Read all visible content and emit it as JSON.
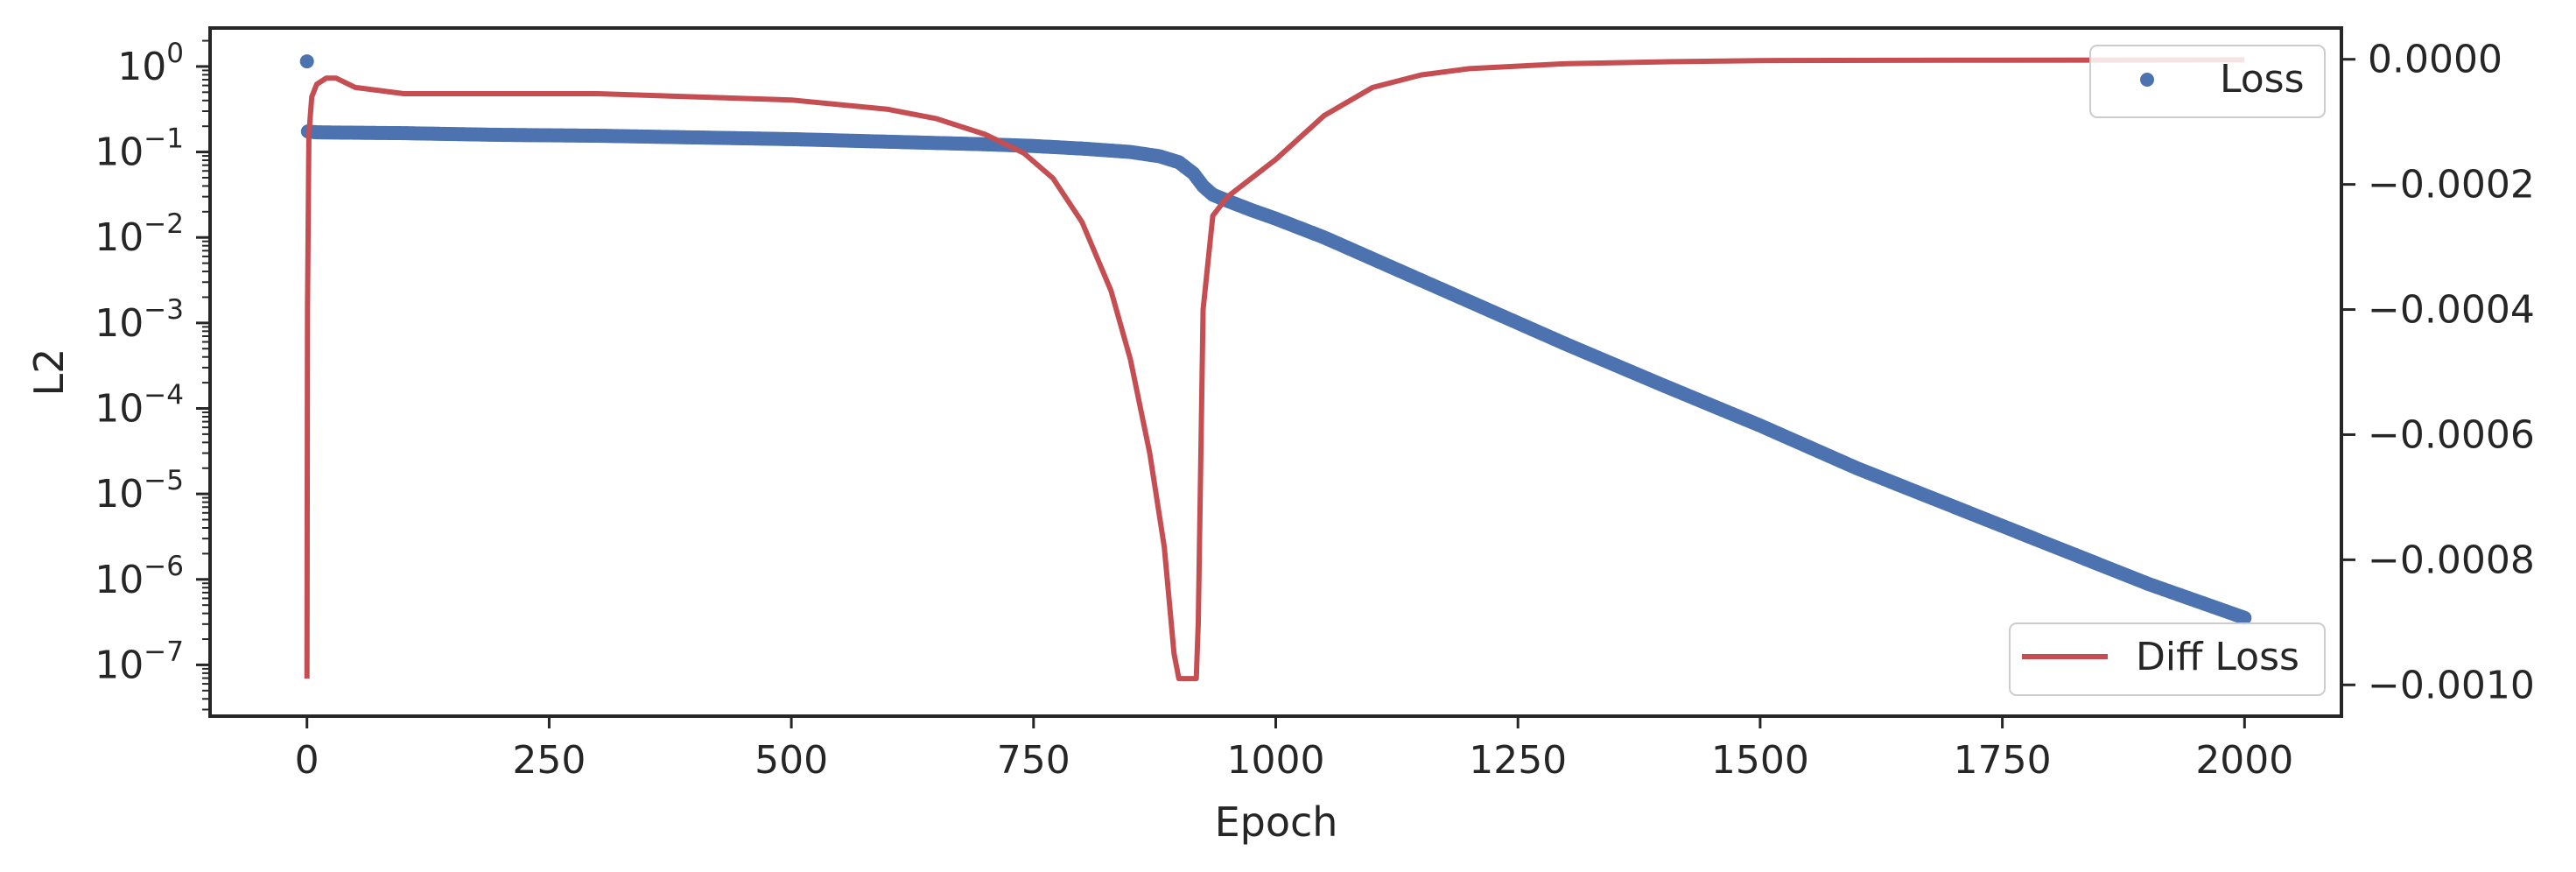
{
  "chart_data": {
    "type": "line",
    "xlabel": "Epoch",
    "ylabel": "L2",
    "ylabel_right": "",
    "xlim": [
      -100,
      2100
    ],
    "x_ticks": [
      0,
      250,
      500,
      750,
      1000,
      1250,
      1500,
      1750,
      2000
    ],
    "left_axis": {
      "scale": "log",
      "ylim_exponent": [
        -7.6,
        0.45
      ],
      "tick_base": "10",
      "tick_exponents": [
        "0",
        "−1",
        "−2",
        "−3",
        "−4",
        "−5",
        "−6",
        "−7"
      ],
      "tick_values": [
        0,
        -1,
        -2,
        -3,
        -4,
        -5,
        -6,
        -7
      ]
    },
    "right_axis": {
      "scale": "linear",
      "ylim": [
        -0.00105,
        5e-05
      ],
      "ticks": [
        0.0,
        -0.0002,
        -0.0004,
        -0.0006,
        -0.0008,
        -0.001
      ],
      "tick_labels": [
        "0.0000",
        "−0.0002",
        "−0.0004",
        "−0.0006",
        "−0.0008",
        "−0.0010"
      ]
    },
    "series": [
      {
        "name": "Loss",
        "axis": "left",
        "style": "markers",
        "color": "#4c72b0",
        "log10_values": [
          [
            0,
            0.06
          ],
          [
            1,
            -0.76
          ],
          [
            10,
            -0.77
          ],
          [
            50,
            -0.775
          ],
          [
            100,
            -0.78
          ],
          [
            200,
            -0.8
          ],
          [
            300,
            -0.81
          ],
          [
            400,
            -0.83
          ],
          [
            500,
            -0.85
          ],
          [
            600,
            -0.88
          ],
          [
            700,
            -0.91
          ],
          [
            750,
            -0.93
          ],
          [
            800,
            -0.96
          ],
          [
            850,
            -1.0
          ],
          [
            880,
            -1.05
          ],
          [
            900,
            -1.12
          ],
          [
            915,
            -1.25
          ],
          [
            925,
            -1.4
          ],
          [
            935,
            -1.5
          ],
          [
            950,
            -1.57
          ],
          [
            975,
            -1.68
          ],
          [
            1000,
            -1.78
          ],
          [
            1050,
            -2.0
          ],
          [
            1100,
            -2.25
          ],
          [
            1200,
            -2.75
          ],
          [
            1300,
            -3.25
          ],
          [
            1400,
            -3.73
          ],
          [
            1500,
            -4.2
          ],
          [
            1600,
            -4.7
          ],
          [
            1700,
            -5.15
          ],
          [
            1800,
            -5.6
          ],
          [
            1900,
            -6.05
          ],
          [
            2000,
            -6.45
          ]
        ]
      },
      {
        "name": "Diff Loss",
        "axis": "right",
        "style": "line",
        "color": "#c44e52",
        "values": [
          [
            0,
            -0.00099
          ],
          [
            0.6,
            -0.0004
          ],
          [
            2,
            -0.00012
          ],
          [
            5,
            -6e-05
          ],
          [
            10,
            -4e-05
          ],
          [
            20,
            -3e-05
          ],
          [
            30,
            -3e-05
          ],
          [
            50,
            -4.5e-05
          ],
          [
            100,
            -5.5e-05
          ],
          [
            200,
            -5.5e-05
          ],
          [
            300,
            -5.5e-05
          ],
          [
            400,
            -6e-05
          ],
          [
            500,
            -6.5e-05
          ],
          [
            600,
            -8e-05
          ],
          [
            650,
            -9.5e-05
          ],
          [
            700,
            -0.00012
          ],
          [
            740,
            -0.00015
          ],
          [
            770,
            -0.00019
          ],
          [
            800,
            -0.00026
          ],
          [
            830,
            -0.00037
          ],
          [
            850,
            -0.00048
          ],
          [
            870,
            -0.00063
          ],
          [
            885,
            -0.00078
          ],
          [
            895,
            -0.00095
          ],
          [
            900,
            -0.00099
          ],
          [
            918,
            -0.00099
          ],
          [
            920,
            -0.0009
          ],
          [
            925,
            -0.0004
          ],
          [
            935,
            -0.00025
          ],
          [
            950,
            -0.00022
          ],
          [
            1000,
            -0.00016
          ],
          [
            1050,
            -9e-05
          ],
          [
            1100,
            -4.5e-05
          ],
          [
            1150,
            -2.5e-05
          ],
          [
            1200,
            -1.5e-05
          ],
          [
            1300,
            -7e-06
          ],
          [
            1400,
            -4e-06
          ],
          [
            1500,
            -2e-06
          ],
          [
            1700,
            -1.5e-06
          ],
          [
            2000,
            -1e-06
          ]
        ]
      }
    ],
    "legends": [
      {
        "placement": "top-right",
        "entries": [
          "Loss"
        ]
      },
      {
        "placement": "bottom-right",
        "entries": [
          "Diff Loss"
        ]
      }
    ],
    "grid": false
  }
}
